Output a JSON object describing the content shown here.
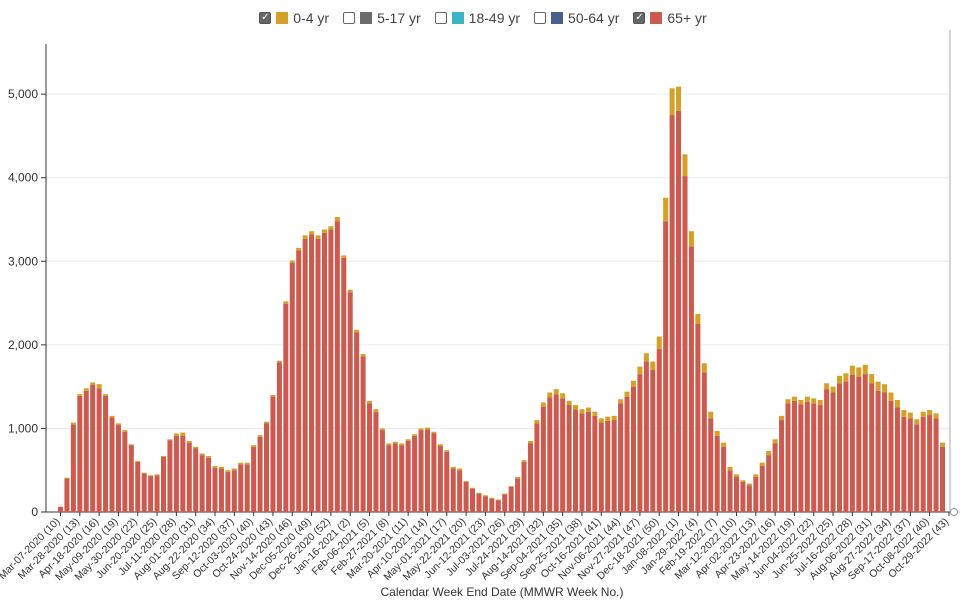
{
  "chart_data": {
    "type": "bar",
    "stacked": true,
    "xlabel": "Calendar Week End Date (MMWR Week No.)",
    "ylabel": "",
    "ylim": [
      0,
      5600
    ],
    "yticks": [
      0,
      1000,
      2000,
      3000,
      4000,
      5000
    ],
    "ytick_labels": [
      "0",
      "1,000",
      "2,000",
      "3,000",
      "4,000",
      "5,000"
    ],
    "legend": [
      {
        "label": "0-4 yr",
        "color": "#d4a027",
        "checked": true
      },
      {
        "label": "5-17 yr",
        "color": "#6b6b6b",
        "checked": false
      },
      {
        "label": "18-49 yr",
        "color": "#3ab5c4",
        "checked": false
      },
      {
        "label": "50-64 yr",
        "color": "#4a5f8c",
        "checked": false
      },
      {
        "label": "65+ yr",
        "color": "#cc5a4e",
        "checked": true
      }
    ],
    "tick_labels": [
      "Mar-07-2020 (10)",
      "Mar-28-2020 (13)",
      "Apr-18-2020 (16)",
      "May-09-2020 (19)",
      "May-30-2020 (22)",
      "Jun-20-2020 (25)",
      "Jul-11-2020 (28)",
      "Aug-01-2020 (31)",
      "Aug-22-2020 (34)",
      "Sep-12-2020 (37)",
      "Oct-03-2020 (40)",
      "Oct-24-2020 (43)",
      "Nov-14-2020 (46)",
      "Dec-05-2020 (49)",
      "Dec-26-2020 (52)",
      "Jan-16-2021 (2)",
      "Feb-06-2021 (5)",
      "Feb-27-2021 (8)",
      "Mar-20-2021 (11)",
      "Apr-10-2021 (14)",
      "May-01-2021 (17)",
      "May-22-2021 (20)",
      "Jun-12-2021 (23)",
      "Jul-03-2021 (26)",
      "Jul-24-2021 (29)",
      "Aug-14-2021 (32)",
      "Sep-04-2021 (35)",
      "Sep-25-2021 (38)",
      "Oct-16-2021 (41)",
      "Nov-06-2021 (44)",
      "Nov-27-2021 (47)",
      "Dec-18-2021 (50)",
      "Jan-08-2022 (1)",
      "Jan-29-2022 (4)",
      "Feb-19-2022 (7)",
      "Mar-12-2022 (10)",
      "Apr-02-2022 (13)",
      "Apr-23-2022 (16)",
      "May-14-2022 (19)",
      "Jun-04-2022 (22)",
      "Jun-25-2022 (25)",
      "Jul-16-2022 (28)",
      "Aug-06-2022 (31)",
      "Aug-27-2022 (34)",
      "Sep-17-2022 (37)",
      "Oct-08-2022 (40)",
      "Oct-29-2022 (43)"
    ],
    "series": [
      {
        "name": "65+ yr",
        "values": [
          60,
          400,
          1050,
          1390,
          1450,
          1520,
          1480,
          1390,
          1130,
          1040,
          960,
          800,
          600,
          460,
          430,
          440,
          660,
          860,
          910,
          910,
          830,
          760,
          680,
          650,
          530,
          520,
          480,
          500,
          570,
          570,
          780,
          900,
          1060,
          1380,
          1790,
          2490,
          2980,
          3130,
          3270,
          3320,
          3270,
          3340,
          3380,
          3480,
          3040,
          2630,
          2150,
          1860,
          1300,
          1200,
          980,
          800,
          820,
          800,
          850,
          910,
          980,
          990,
          940,
          790,
          720,
          520,
          500,
          360,
          280,
          220,
          190,
          160,
          140,
          210,
          300,
          400,
          600,
          820,
          1060,
          1260,
          1370,
          1410,
          1360,
          1280,
          1230,
          1180,
          1200,
          1150,
          1070,
          1090,
          1100,
          1300,
          1380,
          1500,
          1650,
          1800,
          1700,
          1950,
          3480,
          4750,
          4800,
          4020,
          3180,
          2250,
          1670,
          1120,
          910,
          780,
          500,
          420,
          360,
          320,
          420,
          550,
          680,
          820,
          1100,
          1300,
          1330,
          1290,
          1320,
          1300,
          1280,
          1470,
          1430,
          1540,
          1560,
          1640,
          1620,
          1650,
          1540,
          1450,
          1430,
          1330,
          1250,
          1140,
          1120,
          1050,
          1140,
          1160,
          1120,
          780
        ]
      },
      {
        "name": "0-4 yr",
        "values": [
          5,
          10,
          20,
          20,
          30,
          30,
          50,
          20,
          20,
          20,
          20,
          10,
          10,
          10,
          10,
          10,
          10,
          10,
          30,
          40,
          20,
          20,
          20,
          20,
          20,
          20,
          20,
          20,
          20,
          20,
          20,
          20,
          20,
          20,
          20,
          30,
          30,
          30,
          40,
          40,
          40,
          40,
          40,
          50,
          30,
          30,
          30,
          30,
          30,
          30,
          20,
          20,
          20,
          20,
          20,
          20,
          20,
          20,
          20,
          20,
          20,
          20,
          20,
          10,
          10,
          10,
          10,
          10,
          10,
          10,
          10,
          20,
          20,
          30,
          40,
          50,
          60,
          60,
          60,
          50,
          50,
          50,
          50,
          50,
          50,
          50,
          50,
          50,
          60,
          70,
          90,
          100,
          100,
          150,
          280,
          320,
          290,
          260,
          180,
          120,
          110,
          80,
          60,
          50,
          40,
          30,
          20,
          20,
          30,
          40,
          50,
          50,
          50,
          50,
          50,
          50,
          60,
          60,
          60,
          70,
          70,
          90,
          100,
          110,
          110,
          110,
          110,
          110,
          100,
          100,
          90,
          80,
          70,
          60,
          60,
          60,
          60,
          50
        ]
      }
    ]
  }
}
